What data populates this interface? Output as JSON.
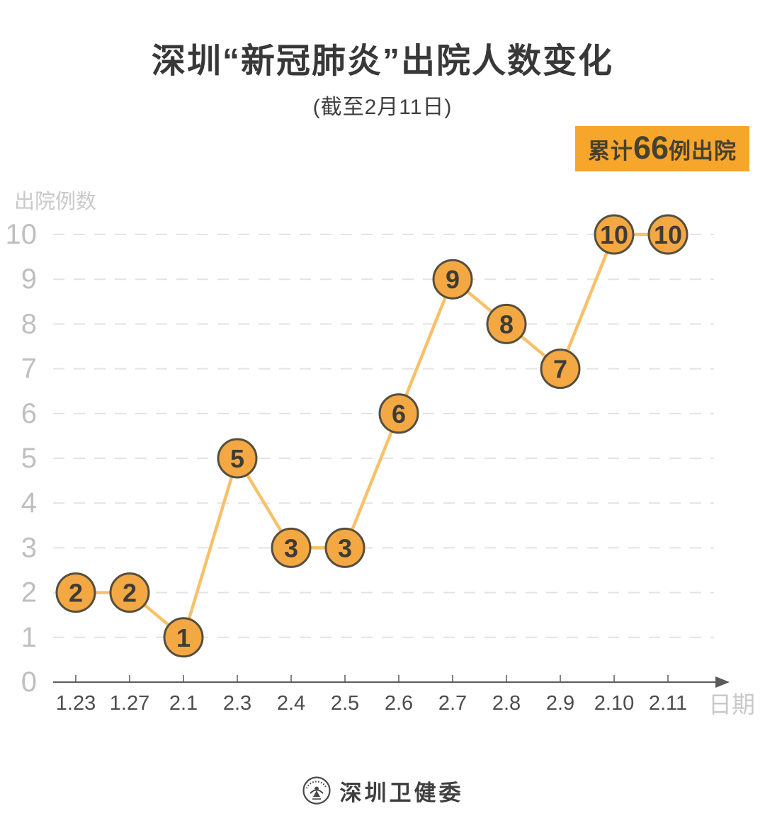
{
  "header": {
    "title": "深圳“新冠肺炎”出院人数变化",
    "subtitle": "(截至2月11日)"
  },
  "badge": {
    "prefix": "累计",
    "number": "66",
    "suffix": "例出院"
  },
  "footer": {
    "source": "深圳卫健委"
  },
  "chart_data": {
    "type": "line",
    "title": "深圳“新冠肺炎”出院人数变化",
    "subtitle": "(截至2月11日)",
    "categories": [
      "1.23",
      "1.27",
      "2.1",
      "2.3",
      "2.4",
      "2.5",
      "2.6",
      "2.7",
      "2.8",
      "2.9",
      "2.10",
      "2.11"
    ],
    "values": [
      2,
      2,
      1,
      5,
      3,
      3,
      6,
      9,
      8,
      7,
      10,
      10
    ],
    "xlabel": "日期",
    "ylabel": "出院例数",
    "ylim": [
      0,
      10
    ],
    "yticks": [
      0,
      1,
      2,
      3,
      4,
      5,
      6,
      7,
      8,
      9,
      10
    ],
    "grid": "horizontal-dashed",
    "legend": "none",
    "annotation": "累计66例出院",
    "point_labels": true,
    "colors": {
      "line": "#F8C169",
      "point_fill": "#F4A843",
      "point_stroke": "#554F3E",
      "point_text": "#3E3C36",
      "badge_bg": "#F6A62B",
      "badge_text": "#46412F",
      "title_text": "#383838",
      "axis_line": "#5A5A5A",
      "x_tick_text": "#4D4D4D",
      "y_tick_text": "#BFBFBF",
      "grid_line": "#E3E3E3",
      "muted_label": "#C9C9C9"
    }
  }
}
